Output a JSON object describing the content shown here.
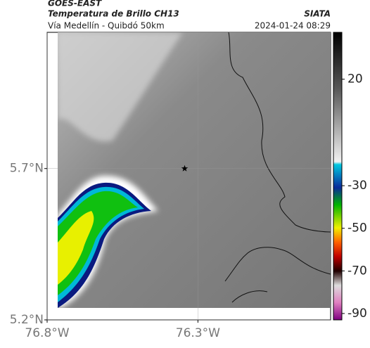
{
  "header": {
    "satellite": "GOES-EAST",
    "product": "Temperatura de Brillo CH13",
    "source": "SIATA",
    "route": "Vía Medellín - Quibdó 50km",
    "datetime": "2024-01-24 08:29"
  },
  "map": {
    "xlim": [
      -76.8,
      -75.86
    ],
    "ylim": [
      5.2,
      6.15
    ],
    "xticks": [
      {
        "value": -76.8,
        "label": "76.8°W"
      },
      {
        "value": -76.3,
        "label": "76.3°W"
      }
    ],
    "yticks": [
      {
        "value": 5.7,
        "label": "5.7°N"
      },
      {
        "value": 5.2,
        "label": "5.2°N"
      }
    ],
    "grid": true,
    "marker": {
      "lon": -76.344,
      "lat": 5.7
    }
  },
  "colorbar": {
    "lim": [
      42,
      -93
    ],
    "ticks": [
      20,
      -30,
      -50,
      -70,
      -90
    ]
  }
}
